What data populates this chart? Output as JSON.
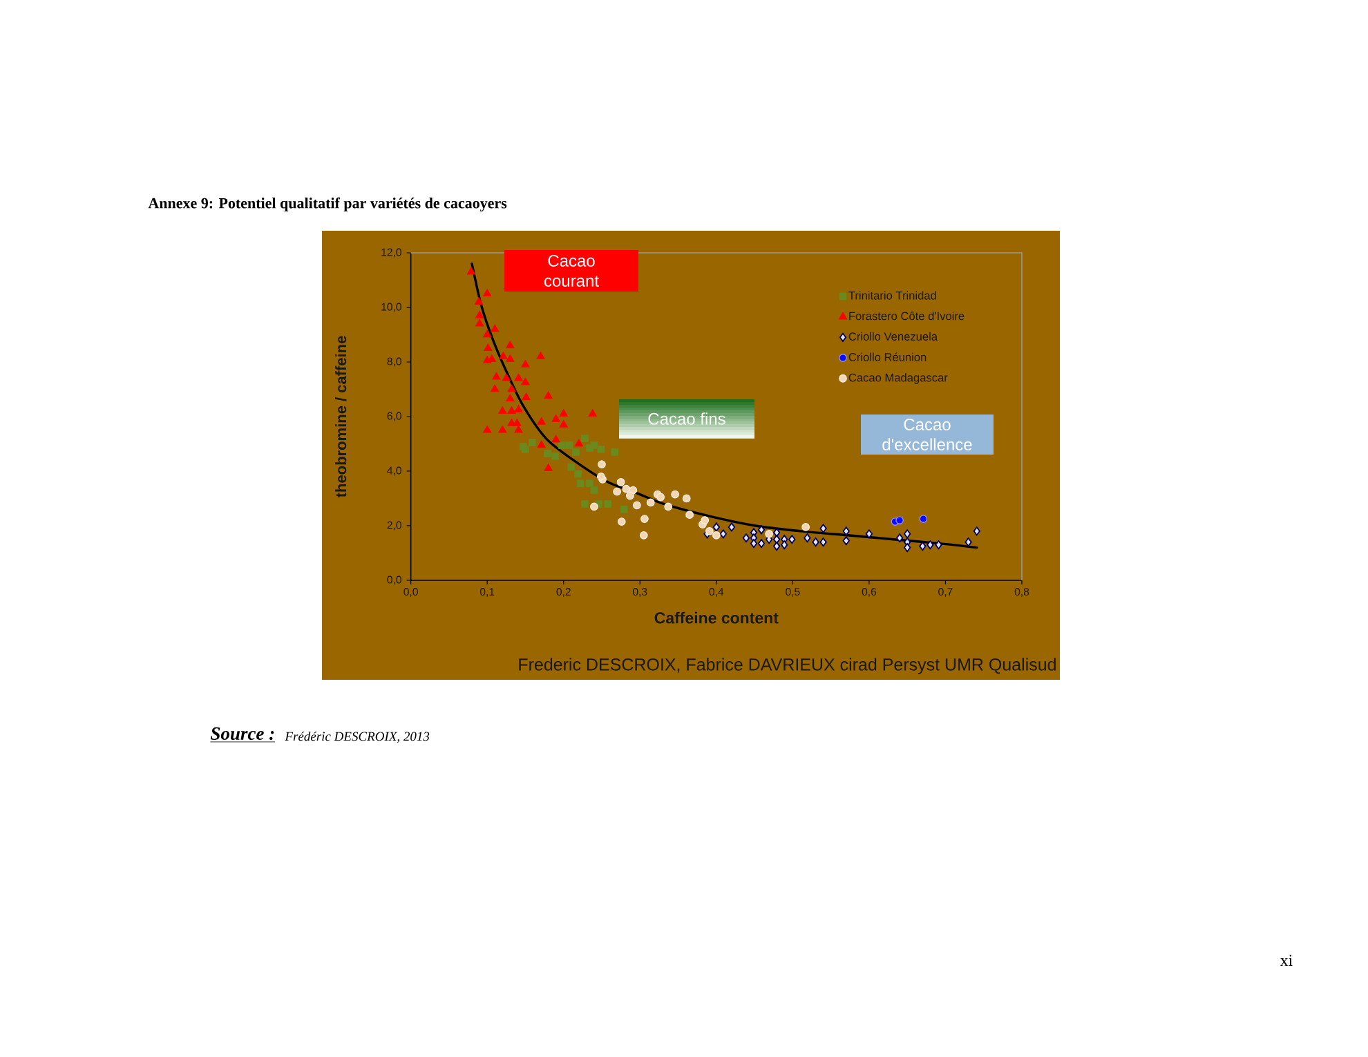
{
  "chart_data": {
    "type": "scatter",
    "title": "Annexe 9: Potentiel qualitatif par variétés de cacaoyers",
    "xlabel": "Caffeine content",
    "ylabel": "theobromine / caffeine",
    "xlim": [
      0,
      0.8
    ],
    "ylim": [
      0,
      12
    ],
    "xticks": [
      {
        "value": 0,
        "label": "0,0"
      },
      {
        "value": 0.1,
        "label": "0,1"
      },
      {
        "value": 0.2,
        "label": "0,2"
      },
      {
        "value": 0.3,
        "label": "0,3"
      },
      {
        "value": 0.4,
        "label": "0,4"
      },
      {
        "value": 0.5,
        "label": "0,5"
      },
      {
        "value": 0.6,
        "label": "0,6"
      },
      {
        "value": 0.7,
        "label": "0,7"
      },
      {
        "value": 0.8,
        "label": "0,8"
      }
    ],
    "yticks": [
      {
        "value": 0,
        "label": "0,0"
      },
      {
        "value": 2,
        "label": "2,0"
      },
      {
        "value": 4,
        "label": "4,0"
      },
      {
        "value": 6,
        "label": "6,0"
      },
      {
        "value": 8,
        "label": "8,0"
      },
      {
        "value": 10,
        "label": "10,0"
      },
      {
        "value": 12,
        "label": "12,0"
      }
    ],
    "legend": "top right",
    "series": [
      {
        "name": "Trinitario Trinidad",
        "color": "#6a8a1e",
        "marker": "square",
        "x": [
          0.15,
          0.159,
          0.179,
          0.189,
          0.198,
          0.207,
          0.216,
          0.228,
          0.24,
          0.249,
          0.267,
          0.21,
          0.219,
          0.222,
          0.234,
          0.24,
          0.228,
          0.246,
          0.258,
          0.279,
          0.147,
          0.234
        ],
        "values": [
          4.8,
          5.05,
          4.65,
          4.55,
          4.95,
          4.95,
          4.7,
          5.2,
          4.95,
          4.8,
          4.7,
          4.15,
          3.9,
          3.55,
          3.55,
          3.3,
          2.8,
          2.8,
          2.8,
          2.6,
          4.9,
          4.85
        ]
      },
      {
        "name": "Forastero Côte d'Ivoire",
        "color": "#ff0000",
        "marker": "triangle",
        "x": [
          0.079,
          0.089,
          0.1,
          0.09,
          0.09,
          0.11,
          0.1,
          0.101,
          0.13,
          0.1,
          0.106,
          0.121,
          0.13,
          0.17,
          0.15,
          0.112,
          0.125,
          0.141,
          0.15,
          0.11,
          0.132,
          0.13,
          0.151,
          0.18,
          0.12,
          0.132,
          0.141,
          0.1,
          0.12,
          0.132,
          0.139,
          0.141,
          0.171,
          0.171,
          0.19,
          0.2,
          0.2,
          0.19,
          0.18,
          0.238,
          0.22
        ],
        "values": [
          11.3,
          10.2,
          10.5,
          9.7,
          9.4,
          9.2,
          9.0,
          8.5,
          8.6,
          8.05,
          8.1,
          8.2,
          8.1,
          8.2,
          7.9,
          7.45,
          7.4,
          7.4,
          7.25,
          7.0,
          7.0,
          6.65,
          6.7,
          6.75,
          6.2,
          6.2,
          6.25,
          5.5,
          5.5,
          5.75,
          5.75,
          5.5,
          5.8,
          4.95,
          5.9,
          6.1,
          5.7,
          5.15,
          4.1,
          6.1,
          5.0
        ]
      },
      {
        "name": "Criollo Venezuela",
        "color": "#e4e6ff",
        "marker": "diamond",
        "x": [
          0.388,
          0.4,
          0.409,
          0.42,
          0.439,
          0.449,
          0.449,
          0.449,
          0.459,
          0.459,
          0.469,
          0.479,
          0.479,
          0.479,
          0.489,
          0.489,
          0.499,
          0.519,
          0.53,
          0.54,
          0.54,
          0.57,
          0.57,
          0.6,
          0.64,
          0.65,
          0.65,
          0.65,
          0.67,
          0.68,
          0.691,
          0.73,
          0.741
        ],
        "values": [
          1.7,
          1.95,
          1.7,
          1.95,
          1.55,
          1.75,
          1.55,
          1.35,
          1.85,
          1.35,
          1.5,
          1.75,
          1.5,
          1.25,
          1.5,
          1.3,
          1.5,
          1.55,
          1.4,
          1.9,
          1.4,
          1.8,
          1.45,
          1.7,
          1.55,
          1.7,
          1.4,
          1.2,
          1.25,
          1.3,
          1.3,
          1.4,
          1.8
        ]
      },
      {
        "name": "Criollo Réunion",
        "color": "#0a0aff",
        "marker": "circle",
        "x": [
          0.634,
          0.64,
          0.671
        ],
        "values": [
          2.15,
          2.2,
          2.25
        ]
      },
      {
        "name": "Cacao Madagascar",
        "color": "#f3d6b4",
        "marker": "circle",
        "x": [
          0.25,
          0.251,
          0.249,
          0.24,
          0.275,
          0.27,
          0.282,
          0.291,
          0.287,
          0.296,
          0.276,
          0.306,
          0.305,
          0.314,
          0.323,
          0.327,
          0.346,
          0.361,
          0.337,
          0.365,
          0.382,
          0.385,
          0.391,
          0.4,
          0.469,
          0.517
        ],
        "values": [
          4.25,
          3.7,
          3.8,
          2.7,
          3.6,
          3.25,
          3.35,
          3.3,
          3.1,
          2.75,
          2.15,
          2.25,
          1.65,
          2.85,
          3.15,
          3.05,
          3.15,
          3.0,
          2.7,
          2.4,
          2.05,
          2.2,
          1.8,
          1.65,
          1.7,
          1.95
        ]
      },
      {
        "type": "line",
        "color": "#000000",
        "marker": "none",
        "x": [
          0.08,
          0.092,
          0.107,
          0.126,
          0.147,
          0.177,
          0.213,
          0.258,
          0.3,
          0.331,
          0.391,
          0.451,
          0.511,
          0.572,
          0.632,
          0.692,
          0.741
        ],
        "values": [
          11.6,
          10.1,
          8.85,
          7.6,
          6.4,
          5.2,
          4.4,
          3.6,
          3.15,
          2.8,
          2.35,
          2.0,
          1.8,
          1.65,
          1.5,
          1.35,
          1.2
        ]
      }
    ],
    "annotations": [
      "Cacao courant",
      "Cacao fins",
      "Cacao d'excellence",
      "Frederic DESCROIX, Fabrice DAVRIEUX cirad Persyst UMR Qualisud",
      "Source :",
      "Frédéric DESCROIX, 2013",
      "xi"
    ]
  }
}
